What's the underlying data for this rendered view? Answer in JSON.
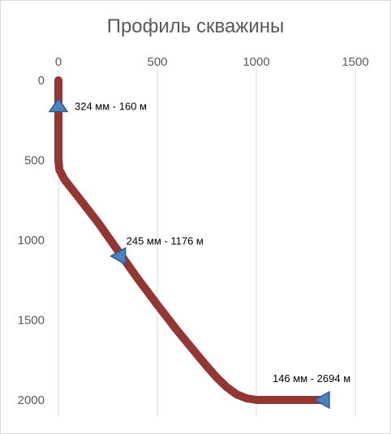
{
  "chart_data": {
    "type": "line",
    "title": "Профиль скважины",
    "xlabel": "",
    "ylabel": "",
    "xlim": [
      0,
      1500
    ],
    "ylim": [
      0,
      2000
    ],
    "y_inverted": true,
    "x_axis_position": "top",
    "x_ticks": [
      0,
      500,
      1000,
      1500
    ],
    "y_ticks": [
      0,
      500,
      1000,
      1500,
      2000
    ],
    "grid": "vertical",
    "legend": "none",
    "colors": {
      "line": "#943634",
      "marker": "#4f81bd",
      "marker_edge": "#2e5a8c",
      "grid": "#d9d9d9",
      "text": "#595959"
    },
    "series": [
      {
        "x": [
          0,
          0,
          0,
          0,
          5,
          30,
          100,
          200,
          300,
          400,
          500,
          600,
          700,
          750,
          800,
          850,
          900,
          950,
          1000,
          1100,
          1200,
          1300,
          1340
        ],
        "y": [
          0,
          160,
          300,
          500,
          560,
          620,
          730,
          890,
          1065,
          1240,
          1405,
          1565,
          1715,
          1790,
          1860,
          1920,
          1965,
          1990,
          2000,
          2000,
          2000,
          2000,
          2000
        ]
      }
    ],
    "annotations": [
      {
        "label": "324 мм - 160 м",
        "x": 0,
        "y": 160,
        "marker": "triangle-up"
      },
      {
        "label": "245 мм - 1176 м",
        "x": 310,
        "y": 1100,
        "marker": "triangle-left"
      },
      {
        "label": "146 мм - 2694 м",
        "x": 1340,
        "y": 2000,
        "marker": "triangle-left"
      }
    ]
  }
}
